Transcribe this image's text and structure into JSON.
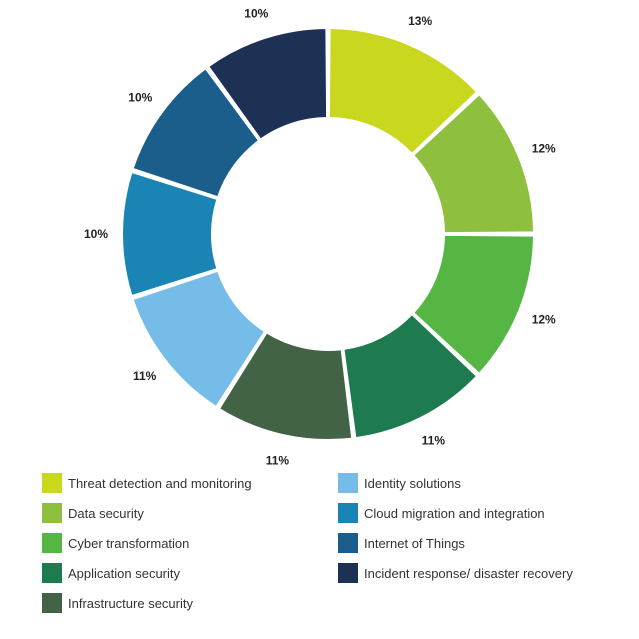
{
  "chart_data": {
    "type": "pie",
    "donut": true,
    "legend_position": "bottom",
    "categories": [
      "Threat detection and monitoring",
      "Data security",
      "Cyber transformation",
      "Application security",
      "Infrastructure security",
      "Identity solutions",
      "Cloud migration and integration",
      "Internet of Things",
      "Incident response/ disaster recovery"
    ],
    "values": [
      13,
      12,
      12,
      11,
      11,
      11,
      10,
      10,
      10
    ],
    "labels": [
      "13%",
      "12%",
      "12%",
      "11%",
      "11%",
      "11%",
      "10%",
      "10%",
      "10%"
    ],
    "colors": [
      "#c9d71f",
      "#8fbf3e",
      "#56b643",
      "#1e7a4f",
      "#426346",
      "#75bde8",
      "#1a84b4",
      "#1b5e8c",
      "#1c3153"
    ]
  }
}
